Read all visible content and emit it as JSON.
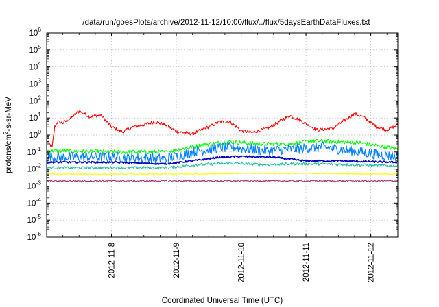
{
  "chart_data": {
    "type": "line",
    "title": "/data/run/goesPlots/archive/2012-11-12/10:00/flux/../flux/5daysEarthDataFluxes.txt",
    "xlabel": "Coordinated Universal Time (UTC)",
    "ylabel": "protons/cm²-s-sr-MeV",
    "ylabel_parts": {
      "base": "protons/cm",
      "sup": "2",
      "rest": "-s-sr-MeV"
    },
    "x_axis": {
      "unit": "UTC date",
      "range": [
        "2012-11-07T00:00",
        "2012-11-12T10:00"
      ],
      "ticks": [
        {
          "at": "2012-11-08",
          "label": "2012-11-8"
        },
        {
          "at": "2012-11-09",
          "label": "2012-11-9"
        },
        {
          "at": "2012-11-10",
          "label": "2012-11-10"
        },
        {
          "at": "2012-11-11",
          "label": "2012-11-11"
        },
        {
          "at": "2012-11-12",
          "label": "2012-11-12"
        }
      ]
    },
    "y_axis": {
      "scale": "log",
      "range": [
        1e-06,
        1000000.0
      ],
      "ticks": [
        {
          "value": 1e-06,
          "base": "10",
          "exp": "-6"
        },
        {
          "value": 1e-05,
          "base": "10",
          "exp": "-5"
        },
        {
          "value": 0.0001,
          "base": "10",
          "exp": "-4"
        },
        {
          "value": 0.001,
          "base": "10",
          "exp": "-3"
        },
        {
          "value": 0.01,
          "base": "10",
          "exp": "-2"
        },
        {
          "value": 0.1,
          "base": "10",
          "exp": "-1"
        },
        {
          "value": 1,
          "base": "10",
          "exp": "0"
        },
        {
          "value": 10,
          "base": "10",
          "exp": "1"
        },
        {
          "value": 100,
          "base": "10",
          "exp": "2"
        },
        {
          "value": 1000,
          "base": "10",
          "exp": "3"
        },
        {
          "value": 10000,
          "base": "10",
          "exp": "4"
        },
        {
          "value": 100000,
          "base": "10",
          "exp": "5"
        },
        {
          "value": 1000000,
          "base": "10",
          "exp": "6"
        }
      ]
    },
    "grid": true,
    "legend": "none",
    "series": [
      {
        "color": "#ff0000",
        "noise": 0.1,
        "points": [
          [
            "2012-11-07T00:00",
            0.5
          ],
          [
            "2012-11-07T02:00",
            0.18
          ],
          [
            "2012-11-07T03:00",
            3
          ],
          [
            "2012-11-07T04:00",
            6
          ],
          [
            "2012-11-07T06:00",
            5
          ],
          [
            "2012-11-07T09:00",
            10
          ],
          [
            "2012-11-07T12:00",
            25
          ],
          [
            "2012-11-07T16:00",
            12
          ],
          [
            "2012-11-07T20:00",
            15
          ],
          [
            "2012-11-08T00:00",
            3
          ],
          [
            "2012-11-08T04:00",
            1.5
          ],
          [
            "2012-11-08T08:00",
            3
          ],
          [
            "2012-11-08T12:00",
            4
          ],
          [
            "2012-11-08T16:00",
            6
          ],
          [
            "2012-11-08T20:00",
            4
          ],
          [
            "2012-11-09T00:00",
            1.6
          ],
          [
            "2012-11-09T06:00",
            1.2
          ],
          [
            "2012-11-09T12:00",
            3
          ],
          [
            "2012-11-09T16:00",
            6
          ],
          [
            "2012-11-09T20:00",
            6
          ],
          [
            "2012-11-10T00:00",
            1.8
          ],
          [
            "2012-11-10T04:00",
            1.4
          ],
          [
            "2012-11-10T10:00",
            2.5
          ],
          [
            "2012-11-10T18:00",
            14
          ],
          [
            "2012-11-10T22:00",
            7
          ],
          [
            "2012-11-11T04:00",
            2
          ],
          [
            "2012-11-11T10:00",
            2.5
          ],
          [
            "2012-11-11T18:00",
            18
          ],
          [
            "2012-11-11T22:00",
            10
          ],
          [
            "2012-11-12T02:00",
            3
          ],
          [
            "2012-11-12T06:00",
            2
          ],
          [
            "2012-11-12T10:00",
            4
          ]
        ]
      },
      {
        "color": "#00ff00",
        "noise": 0.12,
        "points": [
          [
            "2012-11-07T00:00",
            0.12
          ],
          [
            "2012-11-08T00:00",
            0.1
          ],
          [
            "2012-11-08T20:00",
            0.1
          ],
          [
            "2012-11-09T06:00",
            0.2
          ],
          [
            "2012-11-09T12:00",
            0.3
          ],
          [
            "2012-11-09T20:00",
            0.4
          ],
          [
            "2012-11-10T06:00",
            0.3
          ],
          [
            "2012-11-10T18:00",
            0.3
          ],
          [
            "2012-11-11T02:00",
            0.45
          ],
          [
            "2012-11-11T12:00",
            0.4
          ],
          [
            "2012-11-11T20:00",
            0.35
          ],
          [
            "2012-11-12T10:00",
            0.15
          ]
        ]
      },
      {
        "color": "#0080ff",
        "noise": 0.3,
        "points": [
          [
            "2012-11-07T00:00",
            0.05
          ],
          [
            "2012-11-08T00:00",
            0.05
          ],
          [
            "2012-11-08T20:00",
            0.04
          ],
          [
            "2012-11-09T08:00",
            0.12
          ],
          [
            "2012-11-09T20:00",
            0.2
          ],
          [
            "2012-11-10T08:00",
            0.12
          ],
          [
            "2012-11-10T20:00",
            0.15
          ],
          [
            "2012-11-11T06:00",
            0.2
          ],
          [
            "2012-11-11T16:00",
            0.12
          ],
          [
            "2012-11-12T10:00",
            0.05
          ]
        ]
      },
      {
        "color": "#1fbfa0",
        "noise": 0.08,
        "points": [
          [
            "2012-11-07T00:00",
            0.012
          ],
          [
            "2012-11-08T00:00",
            0.012
          ],
          [
            "2012-11-08T20:00",
            0.012
          ],
          [
            "2012-11-09T08:00",
            0.018
          ],
          [
            "2012-11-09T20:00",
            0.022
          ],
          [
            "2012-11-10T08:00",
            0.018
          ],
          [
            "2012-11-10T20:00",
            0.02
          ],
          [
            "2012-11-11T06:00",
            0.02
          ],
          [
            "2012-11-12T10:00",
            0.015
          ]
        ]
      },
      {
        "color": "#0000c0",
        "noise": 0.05,
        "points": [
          [
            "2012-11-07T00:00",
            0.025
          ],
          [
            "2012-11-08T00:00",
            0.025
          ],
          [
            "2012-11-08T20:00",
            0.02
          ],
          [
            "2012-11-09T06:00",
            0.03
          ],
          [
            "2012-11-09T16:00",
            0.05
          ],
          [
            "2012-11-10T00:00",
            0.055
          ],
          [
            "2012-11-10T12:00",
            0.05
          ],
          [
            "2012-11-11T00:00",
            0.03
          ],
          [
            "2012-11-11T12:00",
            0.03
          ],
          [
            "2012-11-12T10:00",
            0.025
          ]
        ]
      },
      {
        "color": "#ffff00",
        "noise": 0.03,
        "points": [
          [
            "2012-11-07T00:00",
            0.005
          ],
          [
            "2012-11-09T00:00",
            0.005
          ],
          [
            "2012-11-10T00:00",
            0.0055
          ],
          [
            "2012-11-11T00:00",
            0.0055
          ],
          [
            "2012-11-12T10:00",
            0.005
          ]
        ]
      },
      {
        "color": "#a03070",
        "noise": 0.04,
        "points": [
          [
            "2012-11-07T00:00",
            0.002
          ],
          [
            "2012-11-09T00:00",
            0.002
          ],
          [
            "2012-11-10T00:00",
            0.002
          ],
          [
            "2012-11-11T00:00",
            0.002
          ],
          [
            "2012-11-12T10:00",
            0.002
          ]
        ]
      }
    ]
  }
}
